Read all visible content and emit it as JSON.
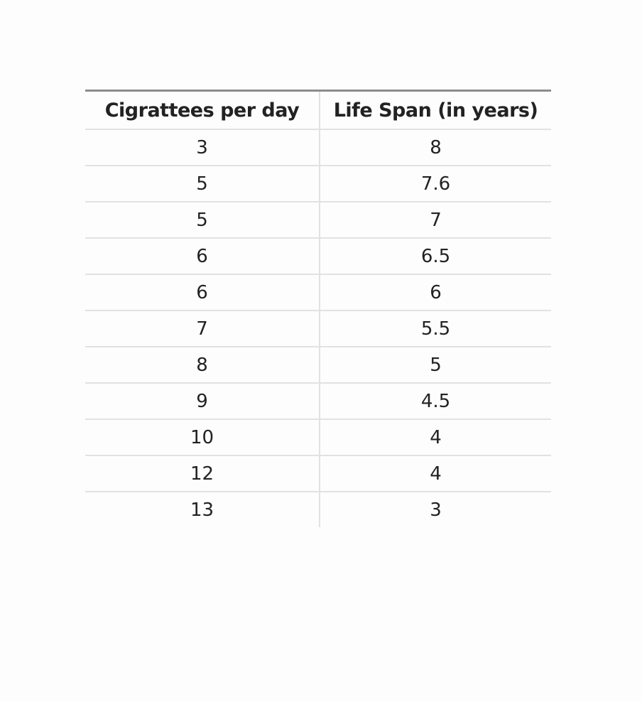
{
  "table": {
    "headers": [
      "Cigrattees per day",
      "Life Span (in years)"
    ],
    "rows": [
      [
        "3",
        "8"
      ],
      [
        "5",
        "7.6"
      ],
      [
        "5",
        "7"
      ],
      [
        "6",
        "6.5"
      ],
      [
        "6",
        "6"
      ],
      [
        "7",
        "5.5"
      ],
      [
        "8",
        "5"
      ],
      [
        "9",
        "4.5"
      ],
      [
        "10",
        "4"
      ],
      [
        "12",
        "4"
      ],
      [
        "13",
        "3"
      ]
    ]
  }
}
